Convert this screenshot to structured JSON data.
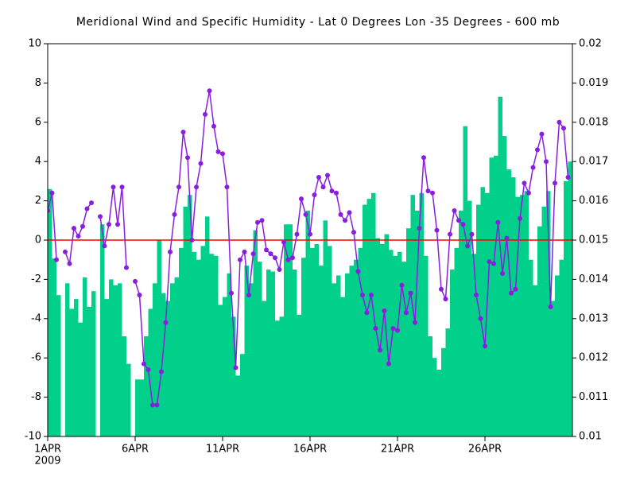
{
  "chart_data": {
    "type": "combo",
    "title": "Meridional Wind and Specific Humidity - Lat 0 Degrees Lon -35 Degrees - 600 mb",
    "x": [
      1,
      1.25,
      1.5,
      1.75,
      2,
      2.25,
      2.5,
      2.75,
      3,
      3.25,
      3.5,
      3.75,
      4,
      4.25,
      4.5,
      4.75,
      5,
      5.25,
      5.5,
      5.75,
      6,
      6.25,
      6.5,
      6.75,
      7,
      7.25,
      7.5,
      7.75,
      8,
      8.25,
      8.5,
      8.75,
      9,
      9.25,
      9.5,
      9.75,
      10,
      10.25,
      10.5,
      10.75,
      11,
      11.25,
      11.5,
      11.75,
      12,
      12.25,
      12.5,
      12.75,
      13,
      13.25,
      13.5,
      13.75,
      14,
      14.25,
      14.5,
      14.75,
      15,
      15.25,
      15.5,
      15.75,
      16,
      16.25,
      16.5,
      16.75,
      17,
      17.25,
      17.5,
      17.75,
      18,
      18.25,
      18.5,
      18.75,
      19,
      19.25,
      19.5,
      19.75,
      20,
      20.25,
      20.5,
      20.75,
      21,
      21.25,
      21.5,
      21.75,
      22,
      22.25,
      22.5,
      22.75,
      23,
      23.25,
      23.5,
      23.75,
      24,
      24.25,
      24.5,
      24.75,
      25,
      25.25,
      25.5,
      25.75,
      26,
      26.25,
      26.5,
      26.75,
      27,
      27.25,
      27.5,
      27.75,
      28,
      28.25,
      28.5,
      28.75,
      29,
      29.25,
      29.5,
      29.75,
      30,
      30.25,
      30.5,
      30.75
    ],
    "xlim": [
      1,
      31
    ],
    "xticks": [
      {
        "value": 1,
        "label": "1APR"
      },
      {
        "value": 6,
        "label": "6APR"
      },
      {
        "value": 11,
        "label": "11APR"
      },
      {
        "value": 16,
        "label": "16APR"
      },
      {
        "value": 21,
        "label": "21APR"
      },
      {
        "value": 26,
        "label": "26APR"
      }
    ],
    "x_year_label": "2009",
    "ylim": [
      -10,
      10
    ],
    "yticks": [
      -10,
      -8,
      -6,
      -4,
      -2,
      0,
      2,
      4,
      6,
      8,
      10
    ],
    "y2lim": [
      0.01,
      0.02
    ],
    "y2ticks": [
      0.01,
      0.011,
      0.012,
      0.013,
      0.014,
      0.015,
      0.016,
      0.017,
      0.018,
      0.019,
      0.02
    ],
    "zero_line_color": "#ff0000",
    "series": [
      {
        "type": "bar",
        "axis": "y2",
        "color": "#00d08a",
        "values": [
          0.0163,
          0.01453,
          0.0136,
          null,
          0.0139,
          0.01325,
          0.0135,
          0.0129,
          0.01405,
          0.0133,
          0.0137,
          null,
          0.0154,
          0.0135,
          0.014,
          0.01385,
          0.0139,
          0.01255,
          0.01185,
          null,
          0.01145,
          0.01145,
          0.01255,
          0.01325,
          0.0139,
          0.015,
          0.01365,
          0.01345,
          0.0139,
          0.01405,
          0.0148,
          0.01585,
          0.01615,
          0.0147,
          0.0145,
          0.01485,
          0.0156,
          0.01465,
          0.0146,
          0.01335,
          0.01355,
          0.01415,
          0.01305,
          0.01155,
          0.0121,
          0.01435,
          0.0139,
          0.01525,
          0.01445,
          0.01345,
          0.01425,
          0.0142,
          0.01295,
          0.01305,
          0.0154,
          0.0154,
          0.01425,
          0.0131,
          0.01455,
          0.01575,
          0.0148,
          0.0149,
          0.01435,
          0.0155,
          0.01485,
          0.0139,
          0.0141,
          0.01355,
          0.01415,
          0.01435,
          0.0145,
          0.0148,
          0.0159,
          0.01605,
          0.0162,
          0.01505,
          0.0149,
          0.01515,
          0.01475,
          0.0146,
          0.0147,
          0.01445,
          0.0153,
          0.01615,
          0.01575,
          0.0162,
          0.0146,
          0.01255,
          0.012,
          0.0117,
          0.01225,
          0.01275,
          0.01425,
          0.0148,
          0.01575,
          0.0179,
          0.016,
          0.01465,
          0.0159,
          0.01635,
          0.0162,
          0.0171,
          0.01715,
          0.01865,
          0.01765,
          0.0168,
          0.0166,
          0.0161,
          0.01615,
          0.01625,
          0.0145,
          0.01385,
          0.01535,
          0.01585,
          0.01625,
          0.01345,
          0.0141,
          0.0145,
          0.0165,
          0.017
        ]
      },
      {
        "type": "line",
        "axis": "y",
        "color": "#8a1ee0",
        "values": [
          1.5,
          2.4,
          -1.0,
          null,
          -0.6,
          -1.2,
          0.6,
          0.2,
          0.7,
          1.6,
          1.9,
          null,
          1.2,
          -0.3,
          0.8,
          2.7,
          0.8,
          2.7,
          -1.4,
          null,
          -2.1,
          -2.8,
          -6.3,
          -6.6,
          -8.4,
          -8.4,
          -6.7,
          -4.2,
          -0.6,
          1.3,
          2.7,
          5.5,
          4.2,
          0.0,
          2.7,
          3.9,
          6.4,
          7.6,
          5.8,
          4.5,
          4.4,
          2.7,
          -2.7,
          -6.5,
          -1.0,
          -0.6,
          -2.8,
          -0.7,
          0.9,
          1.0,
          -0.5,
          -0.7,
          -0.9,
          -1.5,
          -0.1,
          -1.0,
          -0.9,
          0.3,
          2.1,
          1.3,
          0.3,
          2.3,
          3.2,
          2.7,
          3.3,
          2.5,
          2.4,
          1.3,
          1.0,
          1.4,
          0.4,
          -1.6,
          -2.8,
          -3.7,
          -2.8,
          -4.5,
          -5.6,
          -3.6,
          -6.3,
          -4.5,
          -4.6,
          -2.3,
          -3.7,
          -2.7,
          -4.2,
          0.6,
          4.2,
          2.5,
          2.4,
          0.5,
          -2.5,
          -3.0,
          0.3,
          1.5,
          1.0,
          0.8,
          -0.3,
          0.3,
          -2.8,
          -4.0,
          -5.4,
          -1.1,
          -1.2,
          0.9,
          -1.7,
          0.1,
          -2.7,
          -2.5,
          1.1,
          2.9,
          2.4,
          3.7,
          4.6,
          5.4,
          4.0,
          -3.4,
          2.9,
          6.0,
          5.7,
          3.2
        ]
      }
    ]
  }
}
